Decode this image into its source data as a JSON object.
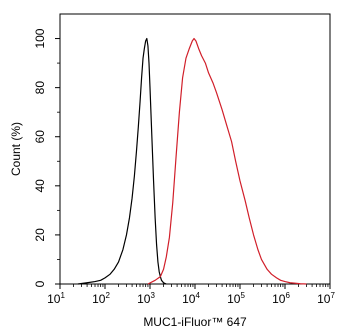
{
  "chart_data": {
    "type": "line",
    "xlabel": "MUC1-iFluor™ 647",
    "ylabel": "Count  (%)",
    "x_scale": "log",
    "xlim": [
      10,
      10000000
    ],
    "ylim": [
      0,
      110
    ],
    "grid": false,
    "x_ticks": [
      {
        "base": "10",
        "exp": "1",
        "value": 10
      },
      {
        "base": "10",
        "exp": "2",
        "value": 100
      },
      {
        "base": "10",
        "exp": "3",
        "value": 1000
      },
      {
        "base": "10",
        "exp": "4",
        "value": 10000
      },
      {
        "base": "10",
        "exp": "5",
        "value": 100000
      },
      {
        "base": "10",
        "exp": "6",
        "value": 1000000
      },
      {
        "base": "10",
        "exp": "7",
        "value": 10000000
      }
    ],
    "y_ticks": [
      "0",
      "20",
      "40",
      "60",
      "80",
      "100"
    ],
    "series": [
      {
        "color": "#000000",
        "x": [
          25,
          40,
          60,
          80,
          100,
          130,
          160,
          200,
          250,
          300,
          350,
          400,
          450,
          500,
          550,
          600,
          650,
          700,
          750,
          800,
          850,
          900,
          950,
          1000,
          1100,
          1200,
          1300,
          1400,
          1500,
          1600,
          1700,
          1800,
          2000,
          2300
        ],
        "y": [
          0,
          0.5,
          1,
          1.5,
          2.5,
          4,
          6,
          9,
          14,
          20,
          27,
          35,
          44,
          54,
          64,
          74,
          84,
          92,
          96,
          99,
          100,
          97,
          90,
          80,
          60,
          42,
          27,
          16,
          9,
          5,
          3,
          1.5,
          0.5,
          0
        ]
      },
      {
        "color": "#d11f2a",
        "x": [
          900,
          1300,
          1700,
          2000,
          2300,
          2700,
          3200,
          3800,
          4500,
          5300,
          6300,
          7500,
          8700,
          9500,
          10500,
          12000,
          14000,
          17000,
          20000,
          25000,
          30000,
          40000,
          50000,
          65000,
          80000,
          100000,
          130000,
          160000,
          200000,
          250000,
          300000,
          400000,
          500000,
          650000,
          800000,
          1000000,
          1300000,
          1700000,
          2200000,
          3000000
        ],
        "y": [
          0,
          1.5,
          3,
          6,
          11,
          19,
          33,
          52,
          70,
          84,
          92,
          96,
          99,
          100,
          99,
          96,
          93,
          90,
          86,
          82,
          78,
          71,
          65,
          58,
          50,
          42,
          34,
          27,
          20,
          14,
          10,
          6,
          4,
          2.5,
          1.5,
          1,
          0.5,
          0.3,
          0.1,
          0
        ]
      }
    ]
  }
}
